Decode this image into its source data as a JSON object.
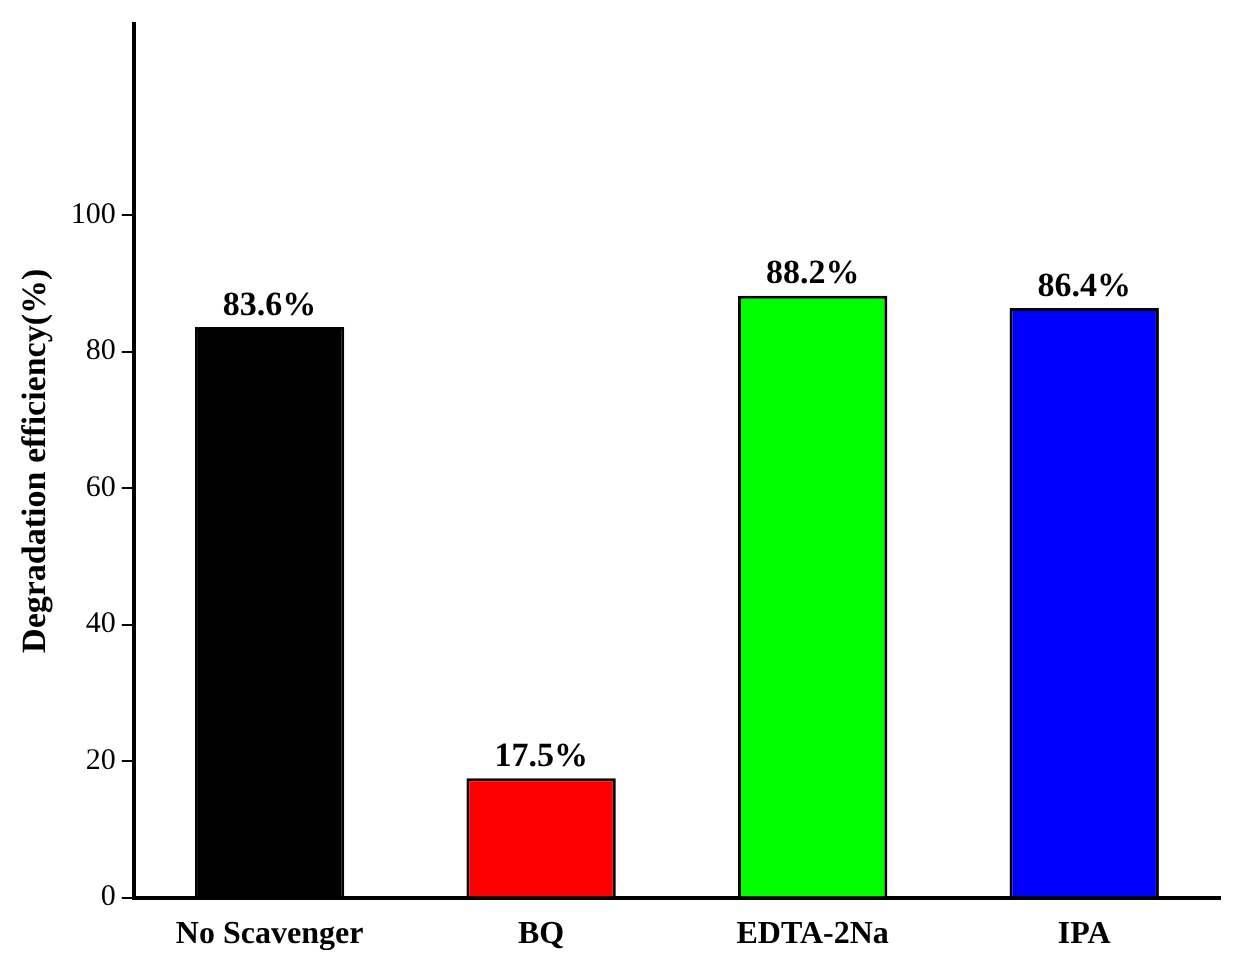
{
  "chart_data": {
    "type": "bar",
    "ylabel": "Degradation efficiency(%)",
    "categories": [
      "No Scavenger",
      "BQ",
      "EDTA-2Na",
      "IPA"
    ],
    "values": [
      83.6,
      17.5,
      88.2,
      86.4
    ],
    "value_labels": [
      "83.6%",
      "17.5%",
      "88.2%",
      "86.4%"
    ],
    "colors": [
      "#000000",
      "#ff0000",
      "#00ff00",
      "#0000ff"
    ],
    "ylim": [
      0,
      128
    ],
    "yticks": [
      0,
      20,
      40,
      60,
      80,
      100
    ],
    "grid": false,
    "legend": false
  }
}
